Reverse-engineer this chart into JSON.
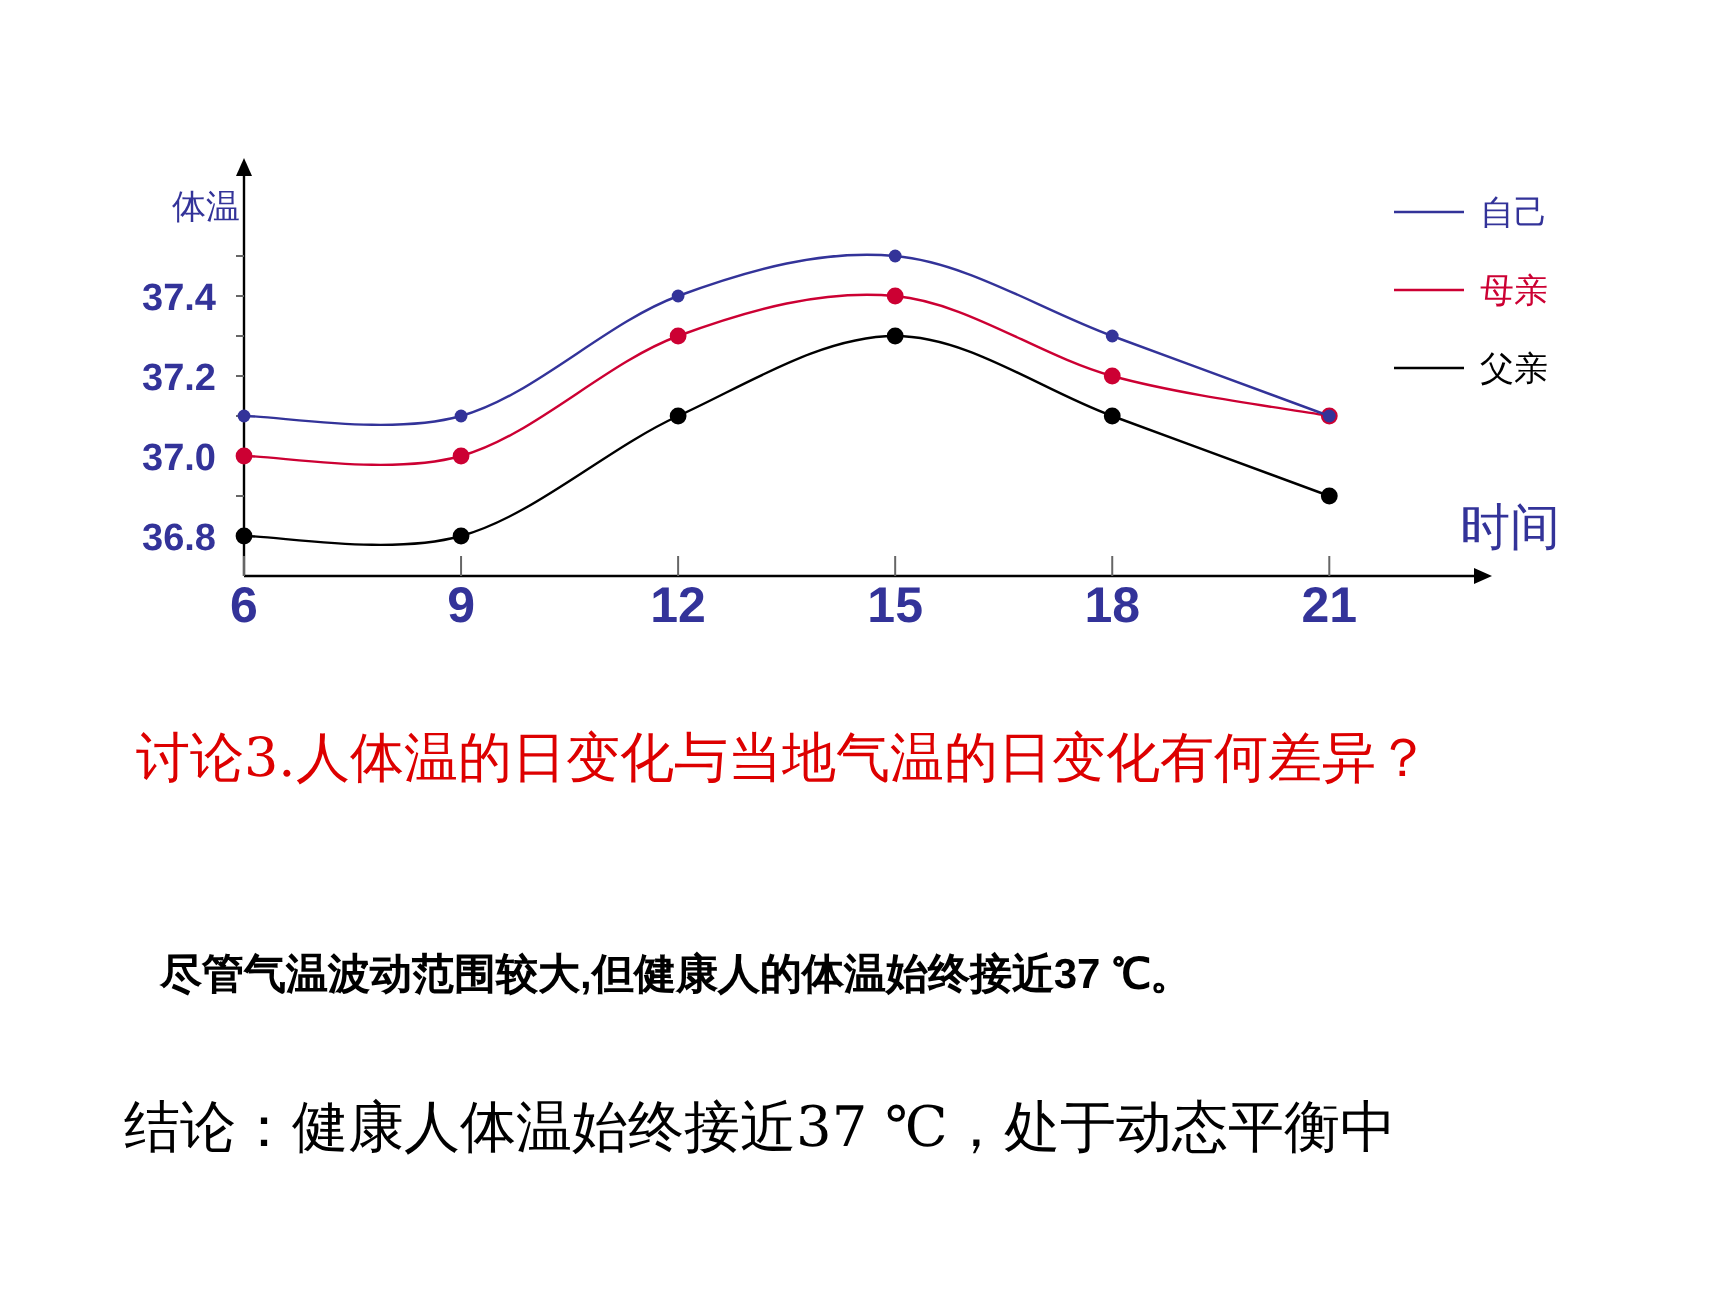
{
  "chart_data": {
    "type": "line",
    "xlabel": "时间",
    "ylabel": "体温",
    "xlim": [
      6,
      23
    ],
    "xticks": [
      6,
      9,
      12,
      15,
      18,
      21
    ],
    "ylim": [
      36.7,
      37.7
    ],
    "yticks": [
      {
        "value": 36.8,
        "label": "36.8"
      },
      {
        "value": 36.9,
        "label": null
      },
      {
        "value": 37.0,
        "label": "37.0"
      },
      {
        "value": 37.1,
        "label": null
      },
      {
        "value": 37.2,
        "label": "37.2"
      },
      {
        "value": 37.3,
        "label": null
      },
      {
        "value": 37.4,
        "label": "37.4"
      },
      {
        "value": 37.5,
        "label": null
      }
    ],
    "x": [
      6,
      9,
      12,
      15,
      18,
      21
    ],
    "series": [
      {
        "name": "自己",
        "color": "#333399",
        "values": [
          37.1,
          37.1,
          37.4,
          37.5,
          37.3,
          37.1
        ]
      },
      {
        "name": "母亲",
        "color": "#cc0033",
        "values": [
          37.0,
          37.0,
          37.3,
          37.4,
          37.2,
          37.1
        ]
      },
      {
        "name": "父亲",
        "color": "#000000",
        "values": [
          36.8,
          36.8,
          37.1,
          37.3,
          37.1,
          36.9
        ]
      }
    ],
    "marker": "circle",
    "line_style": "solid",
    "grid": false,
    "legend": "top right",
    "annotations": [
      "讨论3.人体温的日变化与当地气温的日变化有何差异？",
      "尽管气温波动范围较大,但健康人的体温始终接近37 ℃。",
      "结论：健康人体温始终接近37 ℃，处于动态平衡中"
    ]
  }
}
